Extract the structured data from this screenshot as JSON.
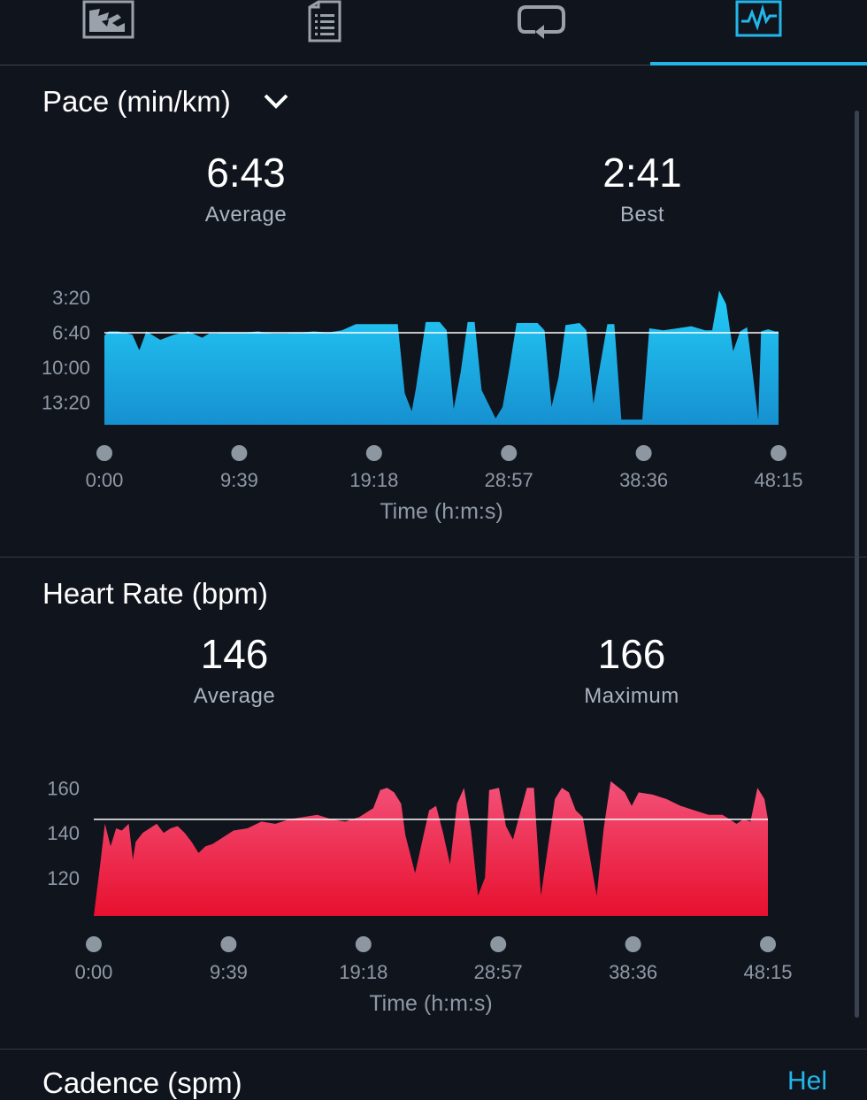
{
  "tabs": [
    {
      "name": "map-icon",
      "active": false
    },
    {
      "name": "stats-list-icon",
      "active": false
    },
    {
      "name": "laps-icon",
      "active": false
    },
    {
      "name": "charts-icon",
      "active": true
    }
  ],
  "colors": {
    "background": "#10141d",
    "accent": "#22b6ea",
    "pace": "#1ec8f5",
    "heart": "#ee2249",
    "axis_text": "#8f99a6"
  },
  "pace": {
    "title": "Pace (min/km)",
    "average_value": "6:43",
    "average_label": "Average",
    "best_value": "2:41",
    "best_label": "Best",
    "xlabel": "Time (h:m:s)"
  },
  "heart": {
    "title": "Heart Rate (bpm)",
    "average_value": "146",
    "average_label": "Average",
    "max_value": "166",
    "max_label": "Maximum",
    "xlabel": "Time (h:m:s)"
  },
  "next_section": {
    "title": "Cadence (spm)",
    "link": "Hel"
  },
  "chart_data": [
    {
      "type": "area",
      "title": "Pace (min/km)",
      "xlabel": "Time (h:m:s)",
      "ylabel": "",
      "x_ticks": [
        "0:00",
        "9:39",
        "19:18",
        "28:57",
        "38:36",
        "48:15"
      ],
      "y_ticks": [
        "3:20",
        "6:40",
        "10:00",
        "13:20"
      ],
      "y_reversed": true,
      "ylim_min": [
        2.0,
        15.5
      ],
      "average_line_min": 6.72,
      "series": [
        {
          "x_min": [
            0,
            0.3,
            1,
            2,
            2.5,
            3,
            3.5,
            4,
            5,
            6,
            7,
            7.5,
            8,
            9,
            10,
            11,
            12,
            13,
            14,
            15,
            16,
            17,
            18,
            19,
            20,
            21,
            21.5,
            22,
            22.3,
            23,
            24,
            24.5,
            25,
            25.5,
            26,
            26.5,
            27,
            28,
            28.5,
            29,
            29.5,
            30,
            31,
            31.5,
            32,
            32.5,
            33,
            34,
            34.5,
            35,
            36,
            36.5,
            37,
            38,
            38.5,
            39,
            40,
            41,
            42,
            43,
            43.5,
            44,
            44.5,
            45,
            45.5,
            46,
            46.8,
            47,
            47.5,
            48,
            48.25
          ],
          "pace_min": [
            7.0,
            6.6,
            6.6,
            6.9,
            8.4,
            6.6,
            7.0,
            7.4,
            6.9,
            6.6,
            7.2,
            6.8,
            6.8,
            6.7,
            6.7,
            6.6,
            6.8,
            6.8,
            6.7,
            6.6,
            6.7,
            6.5,
            5.9,
            5.9,
            5.9,
            5.9,
            12.5,
            14.2,
            12.0,
            5.7,
            5.7,
            6.5,
            14.0,
            10.5,
            5.7,
            5.7,
            12.2,
            14.9,
            13.8,
            10.0,
            5.8,
            5.8,
            5.8,
            6.5,
            13.8,
            11.0,
            6.0,
            5.8,
            6.5,
            13.5,
            5.9,
            5.9,
            15.0,
            15.0,
            15.0,
            6.3,
            6.5,
            6.3,
            6.1,
            6.5,
            6.5,
            2.7,
            4.0,
            8.5,
            6.6,
            6.2,
            15.0,
            6.6,
            6.4,
            6.6,
            6.6
          ]
        }
      ]
    },
    {
      "type": "area",
      "title": "Heart Rate (bpm)",
      "xlabel": "Time (h:m:s)",
      "ylabel": "",
      "x_ticks": [
        "0:00",
        "9:39",
        "19:18",
        "28:57",
        "38:36",
        "48:15"
      ],
      "y_ticks": [
        "160",
        "140",
        "120"
      ],
      "ylim": [
        103,
        168
      ],
      "average_line": 146,
      "series": [
        {
          "x_min": [
            0,
            0.5,
            0.8,
            1.2,
            1.6,
            2,
            2.5,
            2.8,
            3,
            3.5,
            4,
            4.5,
            5,
            5.5,
            6,
            6.5,
            7,
            7.5,
            8,
            8.5,
            9,
            9.5,
            10,
            11,
            12,
            13,
            14,
            15,
            16,
            17,
            18,
            19,
            20,
            20.5,
            21,
            21.5,
            22,
            22.3,
            23,
            24,
            24.5,
            25,
            25.5,
            26,
            26.5,
            27,
            27.5,
            28,
            28.3,
            29,
            29.5,
            30,
            31,
            31.5,
            32,
            33,
            33.5,
            34,
            34.5,
            35,
            36,
            36.5,
            37,
            38,
            38.5,
            39,
            40,
            41,
            42,
            43,
            44,
            45,
            45.5,
            46,
            46.5,
            47,
            47.5,
            48,
            48.25
          ],
          "hr": [
            103,
            128,
            144,
            134,
            142,
            141,
            144,
            128,
            136,
            140,
            142,
            144,
            140,
            142,
            143,
            140,
            136,
            131,
            134,
            135,
            137,
            139,
            141,
            142,
            145,
            144,
            146,
            147,
            148,
            146,
            145,
            147,
            151,
            159,
            160,
            158,
            153,
            139,
            122,
            150,
            152,
            140,
            126,
            153,
            160,
            141,
            112,
            120,
            159,
            160,
            143,
            137,
            160,
            160,
            112,
            155,
            160,
            158,
            150,
            147,
            112,
            142,
            163,
            158,
            152,
            158,
            157,
            155,
            152,
            150,
            148,
            148,
            146,
            144,
            146,
            145,
            160,
            155,
            146
          ]
        }
      ]
    }
  ]
}
